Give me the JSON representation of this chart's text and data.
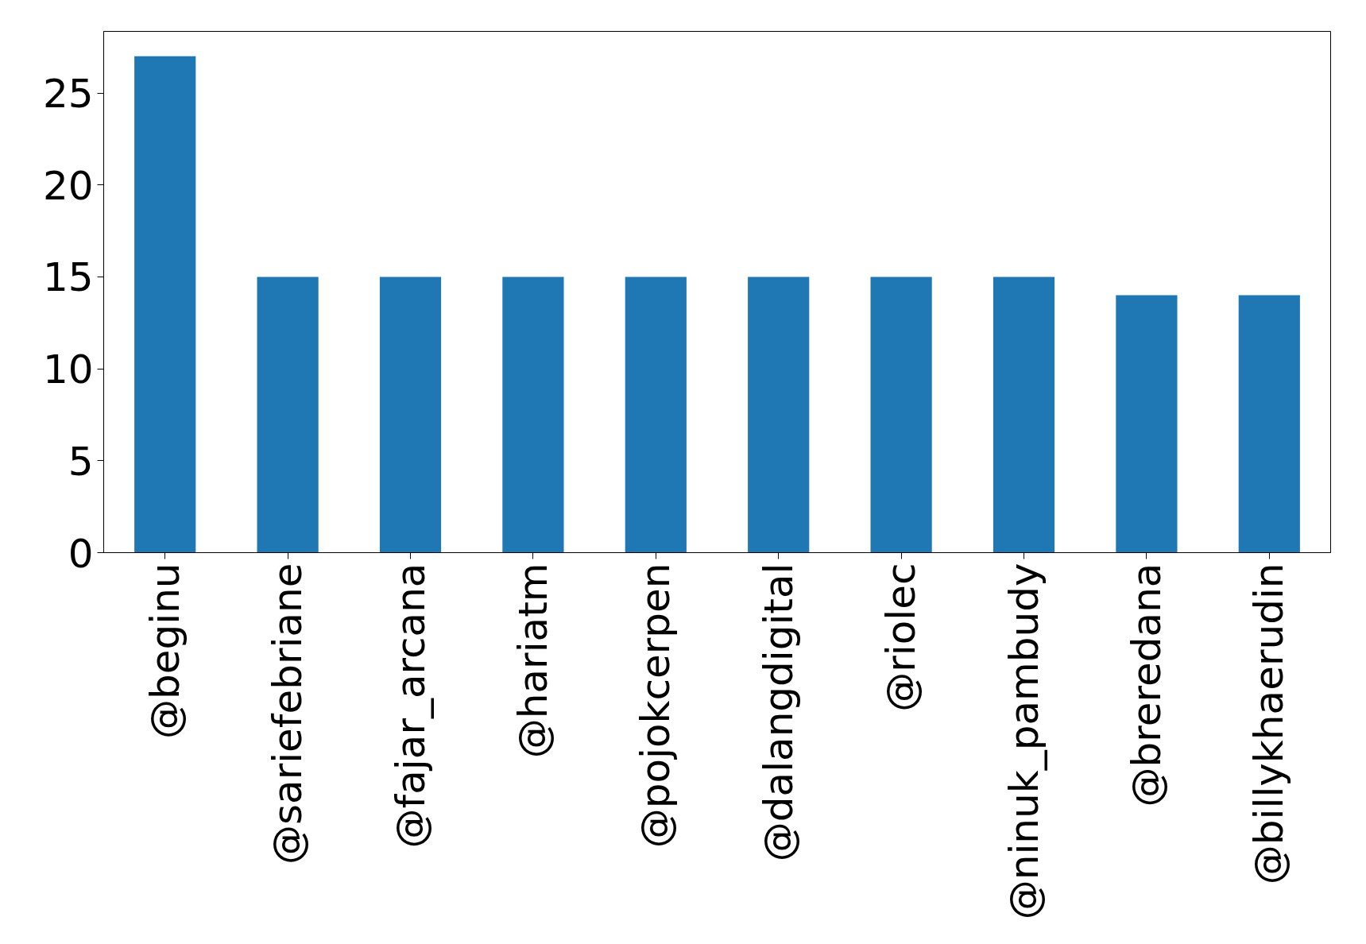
{
  "chart_data": {
    "type": "bar",
    "categories": [
      "@beginu",
      "@sariefebriane",
      "@fajar_arcana",
      "@hariatm",
      "@pojokcerpen",
      "@dalangdigital",
      "@riolec",
      "@ninuk_pambudy",
      "@breredana",
      "@billykhaerudin"
    ],
    "values": [
      27,
      15,
      15,
      15,
      15,
      15,
      15,
      15,
      14,
      14
    ],
    "color": "#1f77b4",
    "ylim": [
      0,
      28.35
    ],
    "yticks": [
      0,
      5,
      10,
      15,
      20,
      25
    ],
    "grid": false
  }
}
